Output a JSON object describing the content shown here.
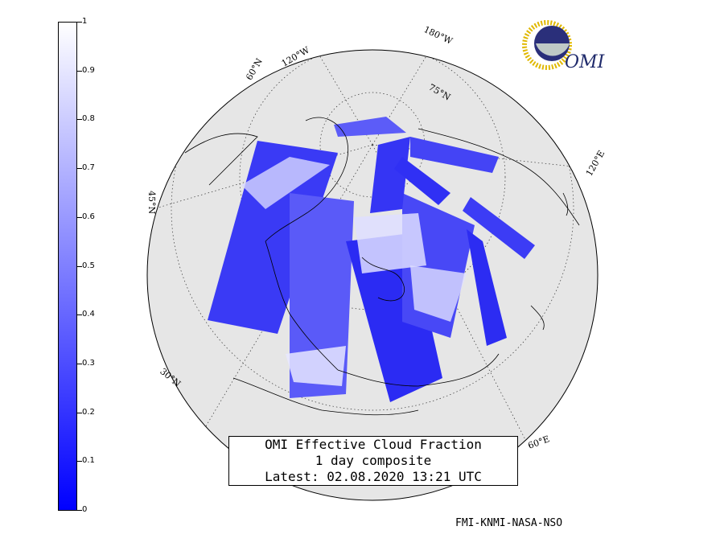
{
  "colorbar": {
    "ticks": [
      "1",
      "0.9",
      "0.8",
      "0.7",
      "0.6",
      "0.5",
      "0.4",
      "0.3",
      "0.2",
      "0.1",
      "0"
    ],
    "color_low": "#0000ff",
    "color_high": "#ffffff"
  },
  "map": {
    "labels": {
      "lon_120w": "120°W",
      "lon_180w": "180°W",
      "lat_75n": "75°N",
      "lat_60n": "60°N",
      "lon_120e": "120°E",
      "lat_45n": "45°N",
      "lat_30n": "30°N",
      "lon_60e": "60°E"
    },
    "globe_fill": "#e6e6e6",
    "land_outline_color": "#000000"
  },
  "title": {
    "line1": "OMI Effective Cloud Fraction",
    "line2": "1 day composite",
    "line3": "Latest: 02.08.2020 13:21 UTC"
  },
  "logo": {
    "text": "OMI"
  },
  "credit": "FMI-KNMI-NASA-NSO"
}
